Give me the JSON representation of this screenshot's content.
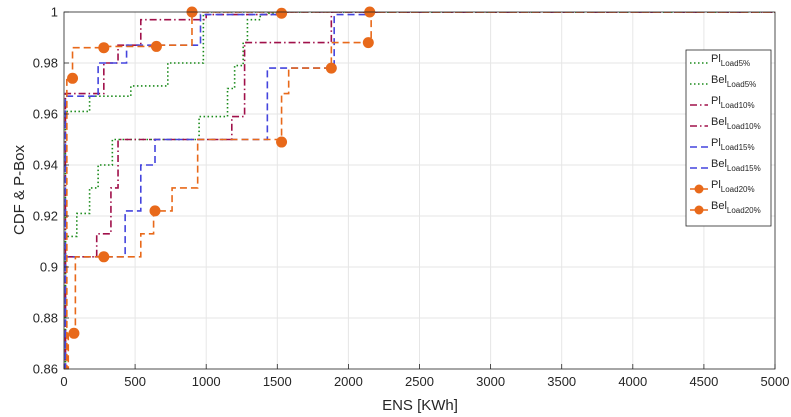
{
  "chart_data": {
    "type": "line",
    "title": "",
    "xlabel": "ENS [KWh]",
    "ylabel": "CDF & P-Box",
    "xlim": [
      0,
      5000
    ],
    "ylim": [
      0.86,
      1
    ],
    "x_ticks": [
      "0",
      "500",
      "1000",
      "1500",
      "2000",
      "2500",
      "3000",
      "3500",
      "4000",
      "4500",
      "5000"
    ],
    "y_ticks": [
      "0.86",
      "0.88",
      "0.9",
      "0.92",
      "0.94",
      "0.96",
      "0.98",
      "1"
    ],
    "grid": true,
    "legend_position": "top-right",
    "series": [
      {
        "name": "Pl",
        "subscript": "Load5%",
        "color": "#1a8a1a",
        "dash": "dotted",
        "marker": "none",
        "x": [
          0,
          10,
          10,
          180,
          180,
          470,
          470,
          730,
          730,
          980,
          980,
          1500,
          1500,
          5000
        ],
        "y": [
          0.86,
          0.86,
          0.961,
          0.961,
          0.967,
          0.967,
          0.971,
          0.971,
          0.98,
          0.98,
          1,
          1,
          1,
          1
        ]
      },
      {
        "name": "Bel",
        "subscript": "Load5%",
        "color": "#1a8a1a",
        "dash": "dotted",
        "marker": "none",
        "x": [
          0,
          10,
          10,
          90,
          90,
          180,
          180,
          240,
          240,
          340,
          340,
          950,
          950,
          1150,
          1150,
          1200,
          1200,
          1260,
          1260,
          1290,
          1290,
          1380,
          1380,
          1440,
          1440,
          1500,
          1500,
          5000
        ],
        "y": [
          0.86,
          0.86,
          0.912,
          0.912,
          0.921,
          0.921,
          0.931,
          0.931,
          0.94,
          0.94,
          0.95,
          0.95,
          0.959,
          0.959,
          0.97,
          0.97,
          0.979,
          0.979,
          0.988,
          0.988,
          0.997,
          0.997,
          0.999,
          0.999,
          0.9995,
          0.9995,
          1,
          1
        ]
      },
      {
        "name": "Pl",
        "subscript": "Load10%",
        "color": "#a0104a",
        "dash": "dashdot",
        "marker": "none",
        "x": [
          0,
          10,
          10,
          280,
          280,
          380,
          380,
          540,
          540,
          1000,
          1000,
          1500,
          1500,
          5000
        ],
        "y": [
          0.86,
          0.86,
          0.968,
          0.968,
          0.98,
          0.98,
          0.987,
          0.987,
          0.997,
          0.997,
          0.999,
          0.999,
          1,
          1
        ]
      },
      {
        "name": "Bel",
        "subscript": "Load10%",
        "color": "#a0104a",
        "dash": "dashdot",
        "marker": "none",
        "x": [
          0,
          10,
          10,
          230,
          230,
          330,
          330,
          380,
          380,
          460,
          460,
          1180,
          1180,
          1270,
          1270,
          1480,
          1480,
          1880,
          1880,
          5000
        ],
        "y": [
          0.86,
          0.86,
          0.904,
          0.904,
          0.913,
          0.913,
          0.931,
          0.931,
          0.95,
          0.95,
          0.95,
          0.95,
          0.959,
          0.959,
          0.988,
          0.988,
          0.988,
          0.988,
          1,
          1
        ]
      },
      {
        "name": "Pl",
        "subscript": "Load15%",
        "color": "#4444dd",
        "dash": "dashed",
        "marker": "none",
        "x": [
          0,
          10,
          10,
          240,
          240,
          440,
          440,
          960,
          960,
          1500,
          1500,
          5000
        ],
        "y": [
          0.86,
          0.86,
          0.967,
          0.967,
          0.98,
          0.98,
          0.987,
          0.987,
          0.999,
          0.999,
          1,
          1
        ]
      },
      {
        "name": "Bel",
        "subscript": "Load15%",
        "color": "#4444dd",
        "dash": "dashed",
        "marker": "none",
        "x": [
          0,
          10,
          10,
          430,
          430,
          540,
          540,
          640,
          640,
          1430,
          1430,
          1900,
          1900,
          2150,
          2150,
          5000
        ],
        "y": [
          0.86,
          0.86,
          0.904,
          0.904,
          0.922,
          0.922,
          0.94,
          0.94,
          0.95,
          0.95,
          0.978,
          0.978,
          0.999,
          0.999,
          1,
          1
        ]
      },
      {
        "name": "Pl",
        "subscript": "Load20%",
        "color": "#e8691a",
        "dash": "dashed",
        "marker": "circle",
        "x": [
          0,
          20,
          20,
          60,
          60,
          280,
          280,
          650,
          650,
          900,
          900,
          1530,
          1530,
          2150,
          2150,
          5000
        ],
        "y": [
          0.86,
          0.86,
          0.974,
          0.974,
          0.986,
          0.986,
          0.9865,
          0.9865,
          0.987,
          0.987,
          1,
          1,
          1,
          1,
          1,
          1
        ],
        "markers_x": [
          60,
          280,
          650,
          900,
          1530,
          2150
        ],
        "markers_y": [
          0.974,
          0.986,
          0.9865,
          1,
          0.9995,
          1
        ]
      },
      {
        "name": "Bel",
        "subscript": "Load20%",
        "color": "#e8691a",
        "dash": "dashed",
        "marker": "circle",
        "x": [
          0,
          30,
          30,
          80,
          80,
          280,
          280,
          540,
          540,
          630,
          630,
          760,
          760,
          940,
          940,
          1530,
          1530,
          1580,
          1580,
          1880,
          1880,
          2140,
          2140,
          2160,
          2160,
          5000
        ],
        "y": [
          0.86,
          0.86,
          0.874,
          0.874,
          0.904,
          0.904,
          0.904,
          0.904,
          0.913,
          0.913,
          0.922,
          0.922,
          0.931,
          0.931,
          0.95,
          0.95,
          0.968,
          0.968,
          0.978,
          0.978,
          0.988,
          0.988,
          0.988,
          0.988,
          1,
          1
        ],
        "markers_x": [
          70,
          280,
          640,
          1530,
          1880,
          2140
        ],
        "markers_y": [
          0.874,
          0.904,
          0.922,
          0.949,
          0.978,
          0.988
        ]
      }
    ]
  }
}
